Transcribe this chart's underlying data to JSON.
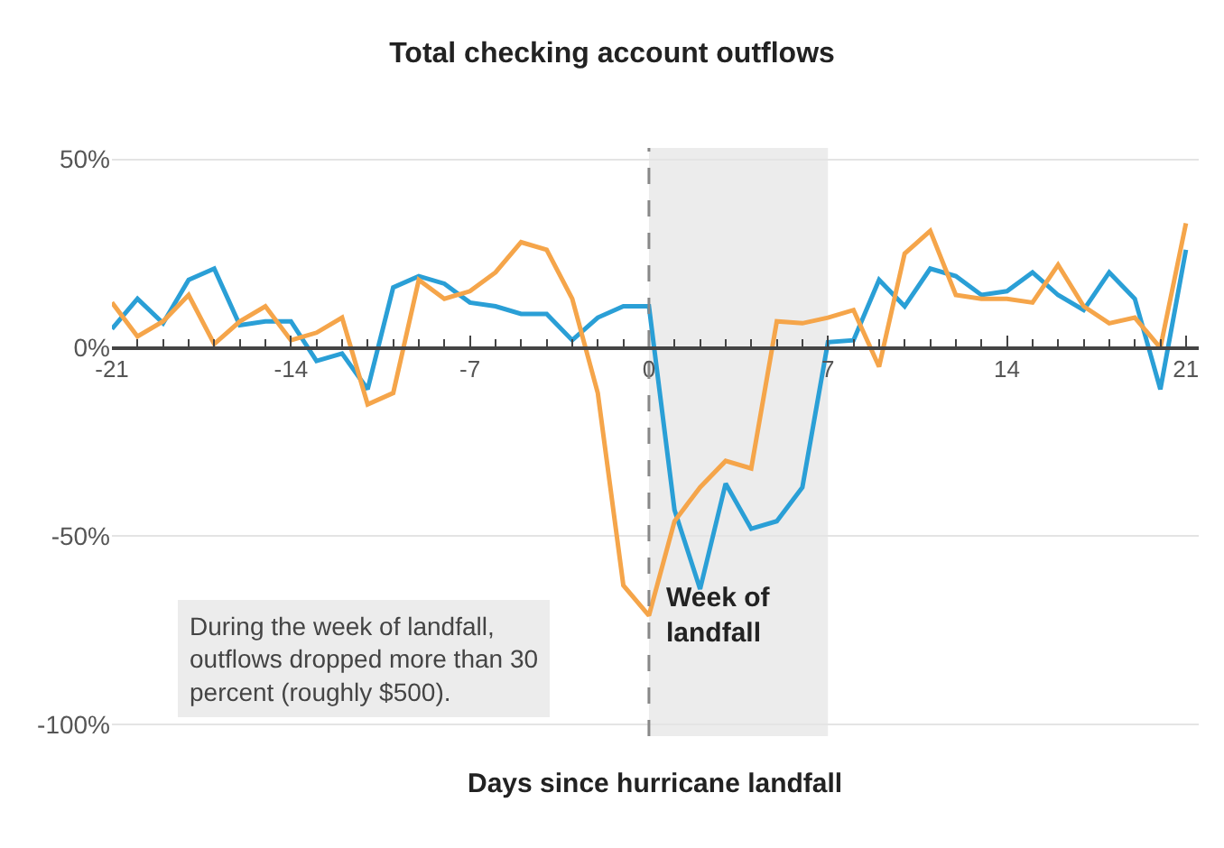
{
  "chart_data": {
    "type": "line",
    "title": "Total checking account outflows",
    "xlabel": "Days since hurricane landfall",
    "x": [
      -21,
      -20,
      -19,
      -18,
      -17,
      -16,
      -15,
      -14,
      -13,
      -12,
      -11,
      -10,
      -9,
      -8,
      -7,
      -6,
      -5,
      -4,
      -3,
      -2,
      -1,
      0,
      1,
      2,
      3,
      4,
      5,
      6,
      7,
      8,
      9,
      10,
      11,
      12,
      13,
      14,
      15,
      16,
      17,
      18,
      19,
      20,
      21
    ],
    "series": [
      {
        "color": "#2a9fd6",
        "values": [
          5,
          13,
          6.5,
          18,
          21,
          6,
          7,
          7,
          -3.5,
          -1.5,
          -11,
          16,
          19,
          17,
          12,
          11,
          9,
          9,
          2,
          8,
          11,
          11,
          -43,
          -64,
          -36,
          -48,
          -46,
          -37,
          1.5,
          2,
          18,
          11,
          21,
          19,
          14,
          15,
          20,
          14,
          10,
          20,
          13,
          -11,
          26
        ]
      },
      {
        "color": "#f5a54a",
        "values": [
          12,
          3,
          7,
          14,
          1,
          7,
          11,
          2,
          4,
          8,
          -15,
          -12,
          18,
          13,
          15,
          20,
          28,
          26,
          13,
          -12,
          -63,
          -71,
          -46,
          -37,
          -30,
          -32,
          7,
          6.5,
          8,
          10,
          -5,
          25,
          31,
          14,
          13,
          13,
          12,
          22,
          11,
          6.5,
          8,
          0,
          33
        ]
      }
    ],
    "xlim": [
      -21,
      21.5
    ],
    "ylim": [
      -103,
      53
    ],
    "xticks": [
      -21,
      -14,
      -7,
      0,
      7,
      14,
      21
    ],
    "yticks": [
      {
        "value": 50,
        "label": "50%"
      },
      {
        "value": 0,
        "label": "0%"
      },
      {
        "value": -50,
        "label": "-50%"
      },
      {
        "value": -100,
        "label": "-100%"
      }
    ],
    "grid": "y",
    "ref_lines": [
      {
        "axis": "x",
        "value": 0,
        "color": "#888888",
        "line_style": "dashed"
      }
    ],
    "bands": [
      {
        "axis": "x",
        "from": 0,
        "to": 7,
        "label": "Week of landfall",
        "color": "#ececec"
      }
    ],
    "annotations": [
      "During the week of landfall, outflows dropped more than 30 percent (roughly $500)."
    ]
  }
}
